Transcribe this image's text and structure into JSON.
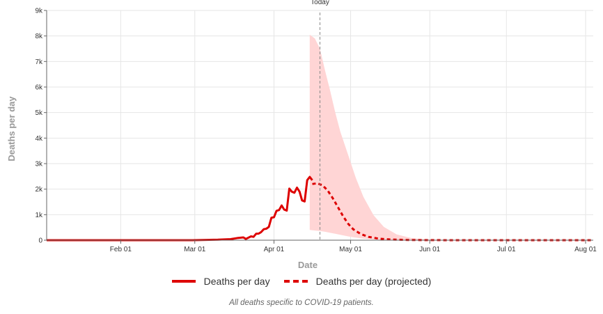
{
  "chart_data": {
    "type": "line",
    "title": "",
    "xlabel": "Date",
    "ylabel": "Deaths per day",
    "x_range": [
      "2020-01-03",
      "2020-08-04"
    ],
    "ylim": [
      0,
      9000
    ],
    "y_ticks": [
      {
        "value": 0,
        "label": "0"
      },
      {
        "value": 1000,
        "label": "1k"
      },
      {
        "value": 2000,
        "label": "2k"
      },
      {
        "value": 3000,
        "label": "3k"
      },
      {
        "value": 4000,
        "label": "4k"
      },
      {
        "value": 5000,
        "label": "5k"
      },
      {
        "value": 6000,
        "label": "6k"
      },
      {
        "value": 7000,
        "label": "7k"
      },
      {
        "value": 8000,
        "label": "8k"
      },
      {
        "value": 9000,
        "label": "9k"
      }
    ],
    "x_ticks": [
      {
        "value": "2020-02-01",
        "label": "Feb 01"
      },
      {
        "value": "2020-03-01",
        "label": "Mar 01"
      },
      {
        "value": "2020-04-01",
        "label": "Apr 01"
      },
      {
        "value": "2020-05-01",
        "label": "May 01"
      },
      {
        "value": "2020-06-01",
        "label": "Jun 01"
      },
      {
        "value": "2020-07-01",
        "label": "Jul 01"
      },
      {
        "value": "2020-08-01",
        "label": "Aug 01"
      }
    ],
    "grid": true,
    "today": {
      "date": "2020-04-19",
      "label": "Today"
    },
    "series": [
      {
        "name": "Deaths per day",
        "style": "solid",
        "color": "#dd0000",
        "points": [
          {
            "x": "2020-01-03",
            "y": 0
          },
          {
            "x": "2020-02-29",
            "y": 0
          },
          {
            "x": "2020-03-05",
            "y": 10
          },
          {
            "x": "2020-03-10",
            "y": 20
          },
          {
            "x": "2020-03-15",
            "y": 40
          },
          {
            "x": "2020-03-18",
            "y": 90
          },
          {
            "x": "2020-03-20",
            "y": 110
          },
          {
            "x": "2020-03-21",
            "y": 50
          },
          {
            "x": "2020-03-23",
            "y": 150
          },
          {
            "x": "2020-03-24",
            "y": 130
          },
          {
            "x": "2020-03-25",
            "y": 250
          },
          {
            "x": "2020-03-26",
            "y": 260
          },
          {
            "x": "2020-03-27",
            "y": 320
          },
          {
            "x": "2020-03-28",
            "y": 430
          },
          {
            "x": "2020-03-29",
            "y": 450
          },
          {
            "x": "2020-03-30",
            "y": 520
          },
          {
            "x": "2020-03-31",
            "y": 880
          },
          {
            "x": "2020-04-01",
            "y": 900
          },
          {
            "x": "2020-04-02",
            "y": 1150
          },
          {
            "x": "2020-04-03",
            "y": 1180
          },
          {
            "x": "2020-04-04",
            "y": 1360
          },
          {
            "x": "2020-04-05",
            "y": 1200
          },
          {
            "x": "2020-04-06",
            "y": 1160
          },
          {
            "x": "2020-04-07",
            "y": 2020
          },
          {
            "x": "2020-04-08",
            "y": 1900
          },
          {
            "x": "2020-04-09",
            "y": 1860
          },
          {
            "x": "2020-04-10",
            "y": 2060
          },
          {
            "x": "2020-04-11",
            "y": 1900
          },
          {
            "x": "2020-04-12",
            "y": 1560
          },
          {
            "x": "2020-04-13",
            "y": 1520
          },
          {
            "x": "2020-04-14",
            "y": 2350
          },
          {
            "x": "2020-04-15",
            "y": 2480
          },
          {
            "x": "2020-04-16",
            "y": 2350
          }
        ]
      },
      {
        "name": "Deaths per day (projected)",
        "style": "dashed",
        "color": "#dd0000",
        "points": [
          {
            "x": "2020-04-16",
            "y": 2200
          },
          {
            "x": "2020-04-18",
            "y": 2230
          },
          {
            "x": "2020-04-20",
            "y": 2150
          },
          {
            "x": "2020-04-22",
            "y": 1950
          },
          {
            "x": "2020-04-24",
            "y": 1650
          },
          {
            "x": "2020-04-26",
            "y": 1300
          },
          {
            "x": "2020-04-28",
            "y": 950
          },
          {
            "x": "2020-04-30",
            "y": 650
          },
          {
            "x": "2020-05-02",
            "y": 430
          },
          {
            "x": "2020-05-05",
            "y": 240
          },
          {
            "x": "2020-05-08",
            "y": 130
          },
          {
            "x": "2020-05-12",
            "y": 60
          },
          {
            "x": "2020-05-17",
            "y": 25
          },
          {
            "x": "2020-05-24",
            "y": 8
          },
          {
            "x": "2020-06-01",
            "y": 2
          },
          {
            "x": "2020-06-15",
            "y": 0
          },
          {
            "x": "2020-08-04",
            "y": 0
          }
        ]
      }
    ],
    "uncertainty_band": {
      "color": "#ffd5d5",
      "points": [
        {
          "x": "2020-04-15",
          "lower": 400,
          "upper": 8050
        },
        {
          "x": "2020-04-17",
          "lower": 380,
          "upper": 7900
        },
        {
          "x": "2020-04-19",
          "lower": 360,
          "upper": 7500
        },
        {
          "x": "2020-04-21",
          "lower": 330,
          "upper": 6650
        },
        {
          "x": "2020-04-23",
          "lower": 290,
          "upper": 5850
        },
        {
          "x": "2020-04-25",
          "lower": 250,
          "upper": 5000
        },
        {
          "x": "2020-04-27",
          "lower": 210,
          "upper": 4250
        },
        {
          "x": "2020-04-30",
          "lower": 150,
          "upper": 3350
        },
        {
          "x": "2020-05-03",
          "lower": 100,
          "upper": 2450
        },
        {
          "x": "2020-05-06",
          "lower": 60,
          "upper": 1700
        },
        {
          "x": "2020-05-10",
          "lower": 30,
          "upper": 980
        },
        {
          "x": "2020-05-14",
          "lower": 12,
          "upper": 520
        },
        {
          "x": "2020-05-19",
          "lower": 4,
          "upper": 230
        },
        {
          "x": "2020-05-25",
          "lower": 1,
          "upper": 80
        },
        {
          "x": "2020-06-01",
          "lower": 0,
          "upper": 25
        },
        {
          "x": "2020-06-10",
          "lower": 0,
          "upper": 5
        },
        {
          "x": "2020-06-20",
          "lower": 0,
          "upper": 0
        }
      ]
    }
  },
  "legend": {
    "placement": "bottom",
    "items": [
      {
        "label": "Deaths per day",
        "style": "solid"
      },
      {
        "label": "Deaths per day (projected)",
        "style": "dashed"
      }
    ]
  },
  "footnote": "All deaths specific to COVID-19 patients."
}
